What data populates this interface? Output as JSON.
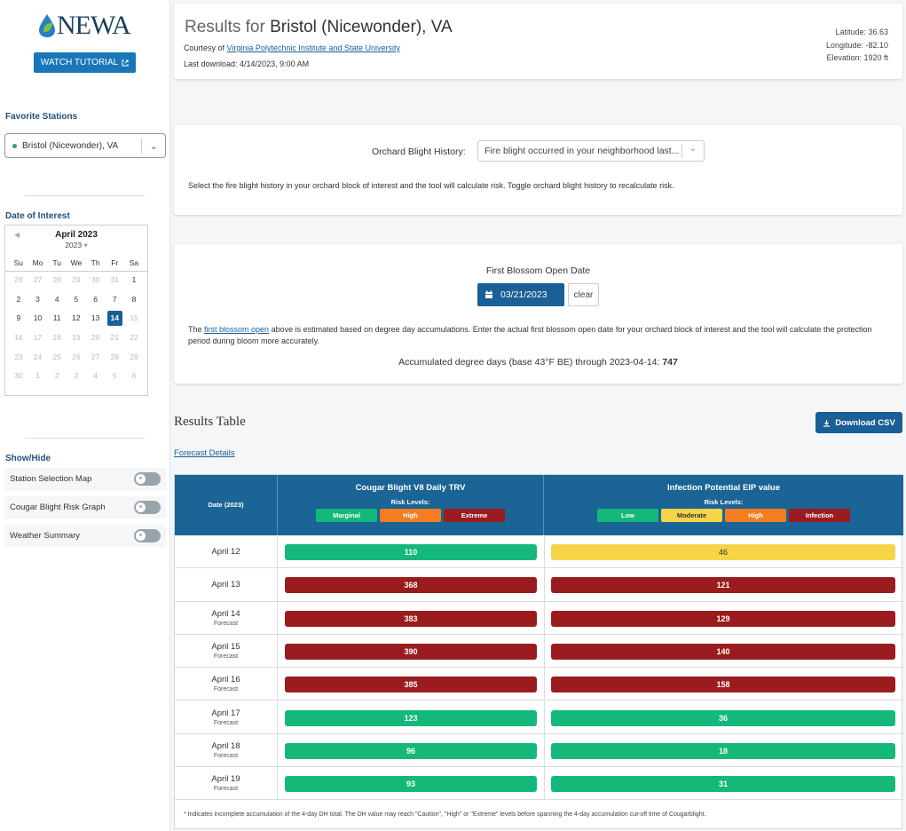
{
  "colors": {
    "green": "#14b87a",
    "orange": "#f47d20",
    "darkred": "#9b1c1f",
    "yellow": "#f6d448",
    "brand": "#1a5f96"
  },
  "sidebar": {
    "logo": "NEWA",
    "tutorial_label": "WATCH TUTORIAL",
    "favorite_heading": "Favorite Stations",
    "station": "Bristol (Nicewonder), VA",
    "date_heading": "Date of Interest",
    "calendar": {
      "month_label": "April 2023",
      "year_label": "2023",
      "dow": [
        "Su",
        "Mo",
        "Tu",
        "We",
        "Th",
        "Fr",
        "Sa"
      ],
      "days": [
        "26",
        "27",
        "28",
        "29",
        "30",
        "31",
        "1",
        "2",
        "3",
        "4",
        "5",
        "6",
        "7",
        "8",
        "9",
        "10",
        "11",
        "12",
        "13",
        "14",
        "15",
        "16",
        "17",
        "18",
        "19",
        "20",
        "21",
        "22",
        "23",
        "24",
        "25",
        "26",
        "27",
        "28",
        "29",
        "30",
        "1",
        "2",
        "3",
        "4",
        "5",
        "6"
      ],
      "selected": "14"
    },
    "show_hide_heading": "Show/Hide",
    "toggles": [
      "Station Selection Map",
      "Cougar Blight Risk Graph",
      "Weather Summary"
    ]
  },
  "header": {
    "prefix": "Results for",
    "station": "Bristol (Nicewonder), VA",
    "courtesy_prefix": "Courtesy of",
    "courtesy_link": "Virginia Polytechnic Institute and State University",
    "last_download": "Last download: 4/14/2023, 9:00 AM",
    "latitude": "Latitude: 36.63",
    "longitude": "Longitude: -82.10",
    "elevation": "Elevation: 1920 ft"
  },
  "blight": {
    "label": "Orchard Blight History:",
    "value": "Fire blight occurred in your neighborhood last...",
    "help": "Select the fire blight history in your orchard block of interest and the tool will calculate risk. Toggle orchard blight history to recalculate risk."
  },
  "blossom": {
    "label": "First Blossom Open Date",
    "date": "03/21/2023",
    "clear": "clear",
    "help_prefix": "The",
    "help_link": "first blossom open",
    "help_rest": "above is estimated based on degree day accumulations. Enter the actual first blossom open date for your orchard block of interest and the tool will calculate the protection period during bloom more accurately.",
    "dd_text": "Accumulated degree days (base 43°F BE) through 2023-04-14:",
    "dd_value": "747"
  },
  "results": {
    "title": "Results Table",
    "download": "Download CSV",
    "forecast_link": "Forecast Details",
    "col_date": "Date (2023)",
    "col_trv": "Cougar Blight V8 Daily TRV",
    "col_eip": "Infection Potential EIP value",
    "risk_levels": "Risk Levels:",
    "trv_legend": [
      "Marginal",
      "High",
      "Extreme"
    ],
    "eip_legend": [
      "Low",
      "Moderate",
      "High",
      "Infection"
    ],
    "forecast_label": "Forecast",
    "rows": [
      {
        "date": "April 12",
        "forecast": false,
        "trv": "110",
        "trv_level": "green",
        "eip": "46",
        "eip_level": "yellow"
      },
      {
        "date": "April 13",
        "forecast": false,
        "trv": "368",
        "trv_level": "darkred",
        "eip": "121",
        "eip_level": "darkred"
      },
      {
        "date": "April 14",
        "forecast": true,
        "trv": "383",
        "trv_level": "darkred",
        "eip": "129",
        "eip_level": "darkred"
      },
      {
        "date": "April 15",
        "forecast": true,
        "trv": "390",
        "trv_level": "darkred",
        "eip": "140",
        "eip_level": "darkred"
      },
      {
        "date": "April 16",
        "forecast": true,
        "trv": "385",
        "trv_level": "darkred",
        "eip": "158",
        "eip_level": "darkred"
      },
      {
        "date": "April 17",
        "forecast": true,
        "trv": "123",
        "trv_level": "green",
        "eip": "36",
        "eip_level": "green"
      },
      {
        "date": "April 18",
        "forecast": true,
        "trv": "96",
        "trv_level": "green",
        "eip": "18",
        "eip_level": "green"
      },
      {
        "date": "April 19",
        "forecast": true,
        "trv": "93",
        "trv_level": "green",
        "eip": "31",
        "eip_level": "green"
      }
    ],
    "footnote": "* Indicates incomplete accumulation of the 4-day DH total. The DH value may reach \"Caution\", \"High\" or \"Extreme\" levels before spanning the 4-day accumulation cut-off time of Cougarblight."
  }
}
